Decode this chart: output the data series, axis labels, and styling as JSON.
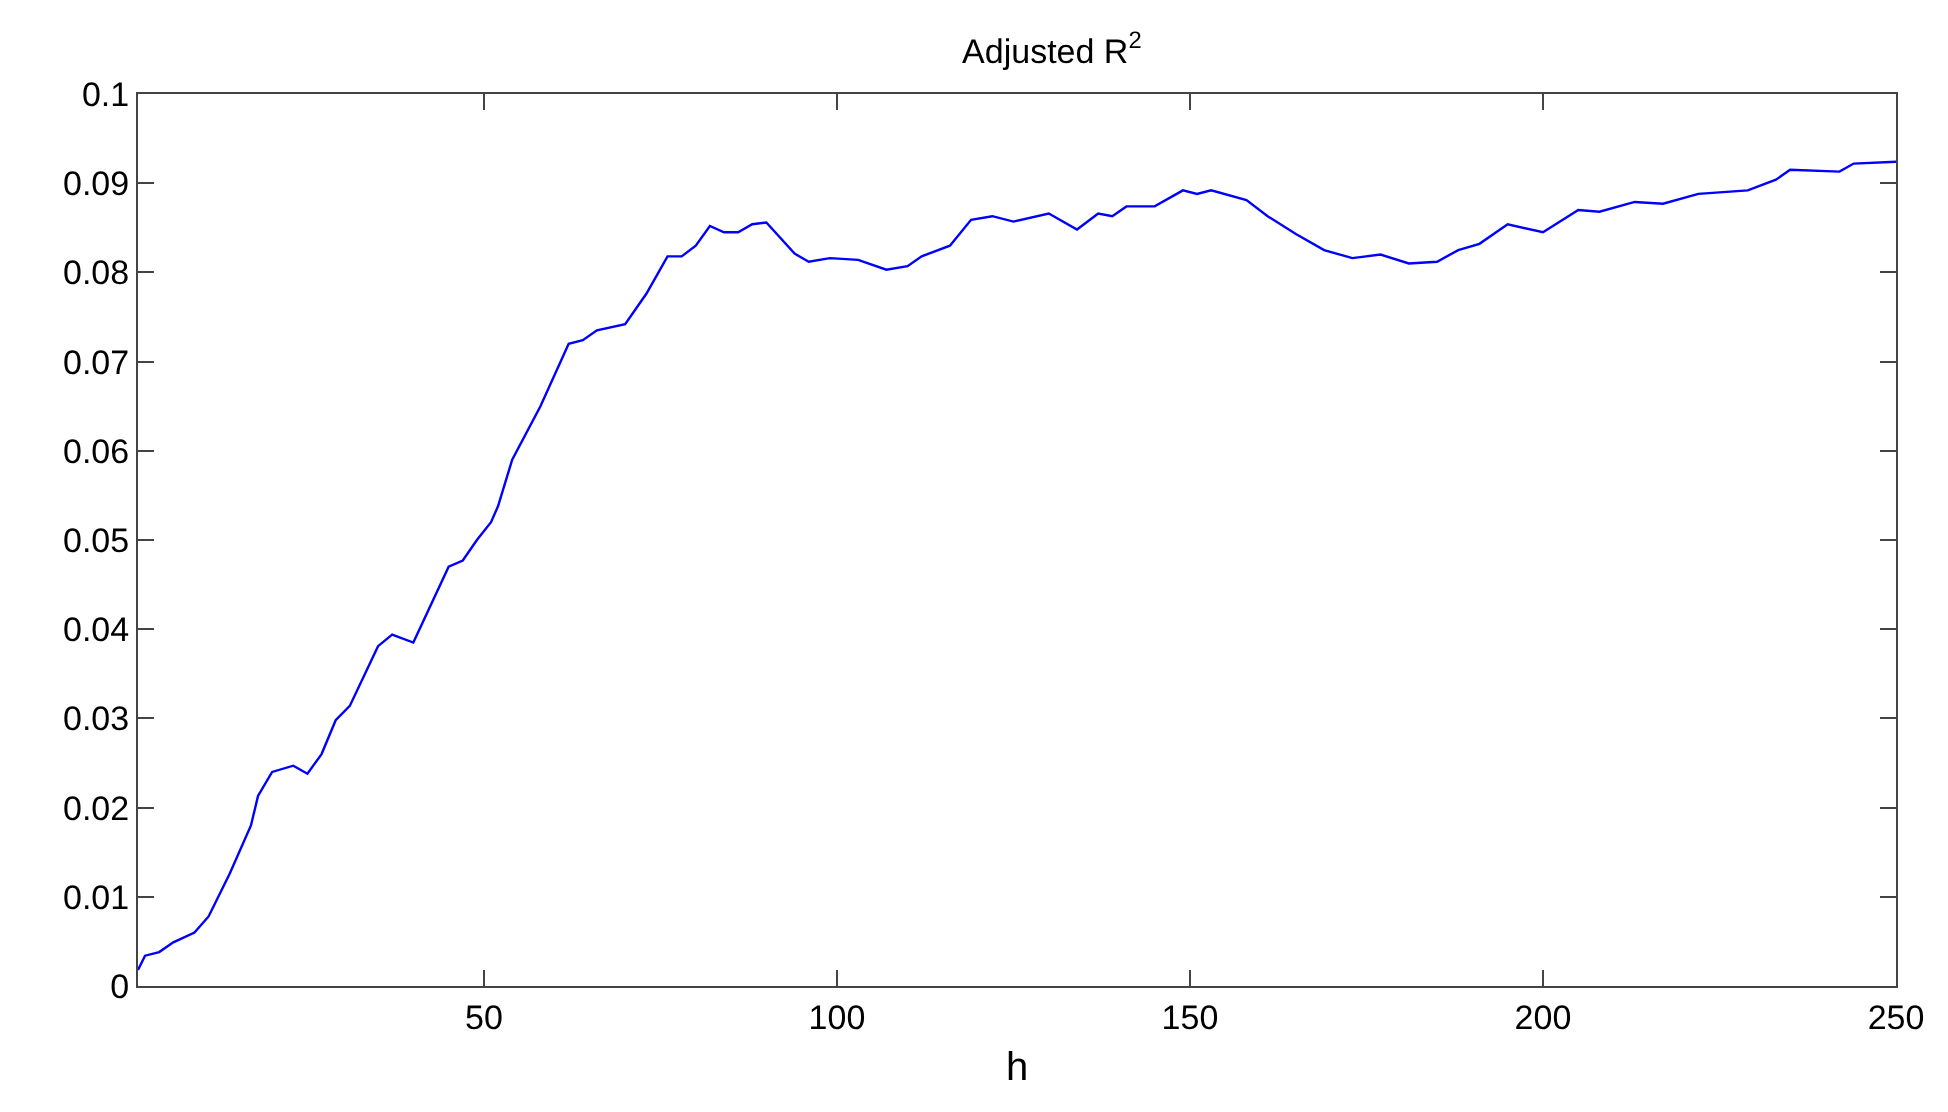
{
  "chart_data": {
    "type": "line",
    "title": "Adjusted R$^{2}$",
    "xlabel": "h",
    "x": [
      1,
      2,
      4,
      6,
      9,
      11,
      14,
      17,
      18,
      20,
      23,
      25,
      27,
      29,
      31,
      35,
      37,
      40,
      45,
      47,
      49,
      51,
      52,
      54,
      58,
      62,
      64,
      66,
      70,
      73,
      76,
      78,
      80,
      82,
      84,
      86,
      88,
      90,
      94,
      96,
      99,
      103,
      107,
      110,
      112,
      116,
      119,
      122,
      125,
      130,
      134,
      137,
      139,
      141,
      145,
      149,
      151,
      153,
      158,
      161,
      165,
      169,
      173,
      177,
      181,
      185,
      188,
      191,
      195,
      200,
      205,
      208,
      213,
      217,
      222,
      229,
      233,
      235,
      242,
      244,
      250
    ],
    "series": [
      {
        "color": "#0000ff",
        "values": [
          0.0018,
          0.0034,
          0.0038,
          0.0049,
          0.006,
          0.0078,
          0.0126,
          0.018,
          0.0213,
          0.024,
          0.0247,
          0.0238,
          0.026,
          0.0298,
          0.0314,
          0.0381,
          0.0394,
          0.0385,
          0.047,
          0.0477,
          0.05,
          0.052,
          0.0538,
          0.059,
          0.065,
          0.072,
          0.0724,
          0.0735,
          0.0742,
          0.0776,
          0.0818,
          0.0818,
          0.083,
          0.0852,
          0.0845,
          0.0845,
          0.0854,
          0.0856,
          0.0821,
          0.0812,
          0.0816,
          0.0814,
          0.0803,
          0.0807,
          0.0818,
          0.083,
          0.0859,
          0.0863,
          0.0857,
          0.0866,
          0.0848,
          0.0866,
          0.0863,
          0.0874,
          0.0874,
          0.0892,
          0.0888,
          0.0892,
          0.0881,
          0.0863,
          0.0843,
          0.0825,
          0.0816,
          0.082,
          0.081,
          0.0812,
          0.0825,
          0.0832,
          0.0854,
          0.0845,
          0.087,
          0.0868,
          0.0879,
          0.0877,
          0.0888,
          0.0892,
          0.0904,
          0.0915,
          0.0913,
          0.0922,
          0.0924
        ]
      }
    ],
    "xlim": [
      1,
      250
    ],
    "xticks": [
      50,
      100,
      150,
      200,
      250
    ],
    "ylim": [
      0,
      0.1
    ],
    "yticks": [
      0,
      0.01,
      0.02,
      0.03,
      0.04,
      0.05,
      0.06,
      0.07,
      0.08,
      0.09,
      0.1
    ],
    "grid": false,
    "marker": "none",
    "line_style": "solid"
  }
}
